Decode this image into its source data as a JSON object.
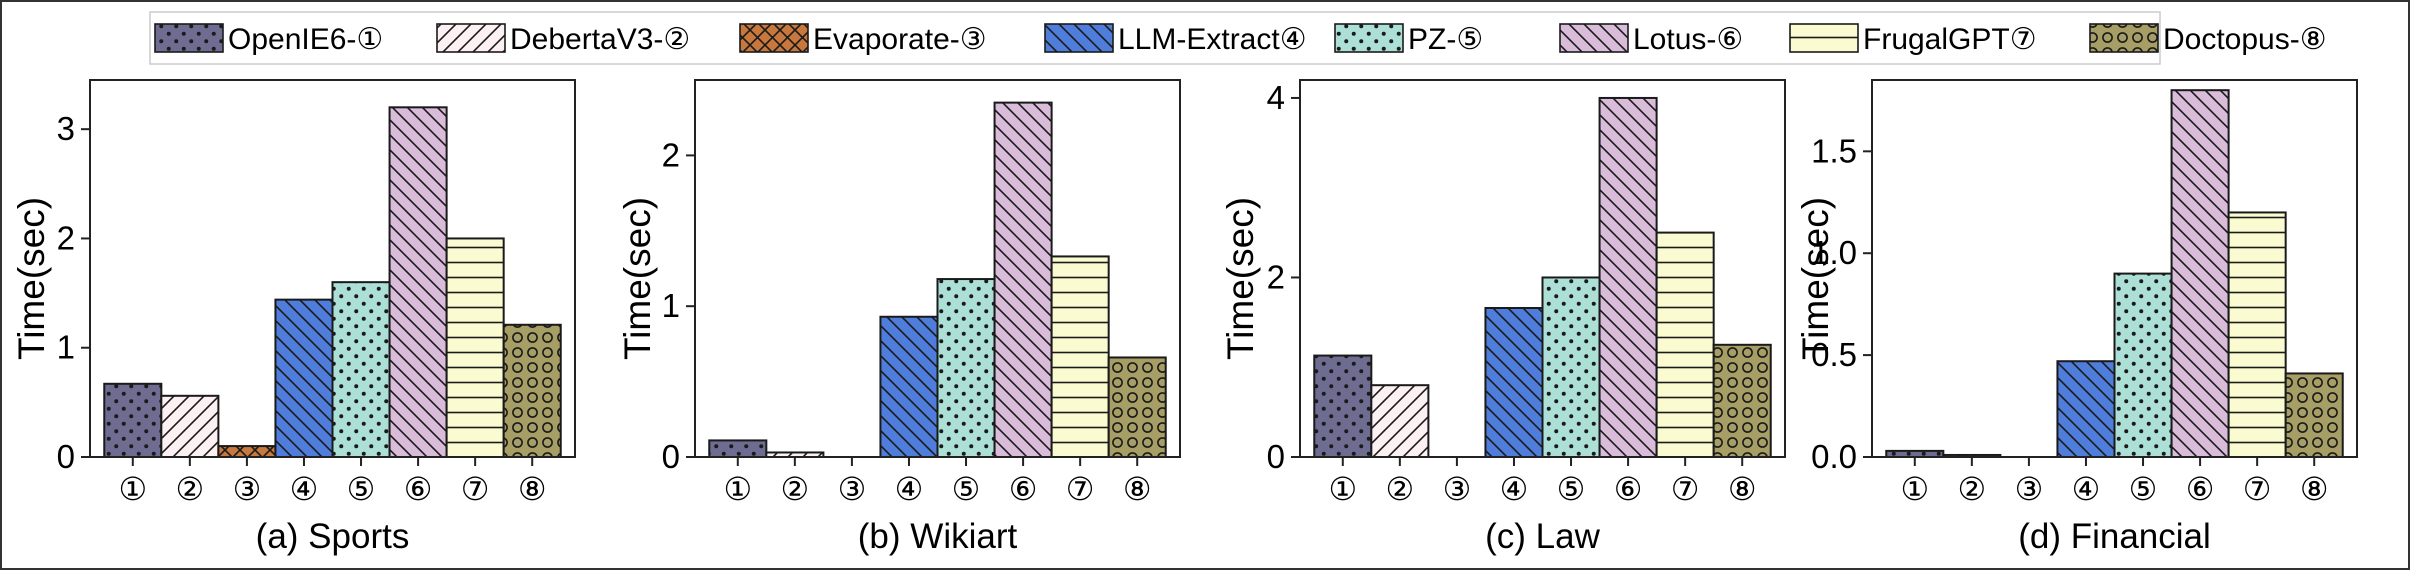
{
  "legend": {
    "placement": "top",
    "items": [
      {
        "label": "OpenIE6-①",
        "color": "#6e6d91",
        "pattern": "dots"
      },
      {
        "label": "DebertaV3-②",
        "color": "#fcf0f2",
        "pattern": "diag"
      },
      {
        "label": "Evaporate-③",
        "color": "#c8783c",
        "pattern": "cross"
      },
      {
        "label": "LLM-Extract④",
        "color": "#4f7ddb",
        "pattern": "back"
      },
      {
        "label": "PZ-⑤",
        "color": "#ace0d6",
        "pattern": "dots"
      },
      {
        "label": "Lotus-⑥",
        "color": "#d9bcd9",
        "pattern": "back"
      },
      {
        "label": "FrugalGPT⑦",
        "color": "#fafbd0",
        "pattern": "hline"
      },
      {
        "label": "Doctopus-⑧",
        "color": "#a69e64",
        "pattern": "circles"
      }
    ]
  },
  "chart_data": [
    {
      "type": "bar",
      "title": "(a) Sports",
      "ylabel": "Time(sec)",
      "categories": [
        "①",
        "②",
        "③",
        "④",
        "⑤",
        "⑥",
        "⑦",
        "⑧"
      ],
      "values": [
        0.67,
        0.56,
        0.1,
        1.44,
        1.6,
        3.2,
        2.0,
        1.21
      ],
      "ylim": [
        0,
        3.45
      ],
      "yticks": [
        0,
        1,
        2,
        3
      ],
      "ytick_labels": [
        "0",
        "1",
        "2",
        "3"
      ],
      "grid": false
    },
    {
      "type": "bar",
      "title": "(b) Wikiart",
      "ylabel": "Time(sec)",
      "categories": [
        "①",
        "②",
        "③",
        "④",
        "⑤",
        "⑥",
        "⑦",
        "⑧"
      ],
      "values": [
        0.11,
        0.03,
        0.0,
        0.93,
        1.18,
        2.35,
        1.33,
        0.66
      ],
      "ylim": [
        0,
        2.5
      ],
      "yticks": [
        0,
        1,
        2
      ],
      "ytick_labels": [
        "0",
        "1",
        "2"
      ],
      "grid": false
    },
    {
      "type": "bar",
      "title": "(c) Law",
      "ylabel": "Time(sec)",
      "categories": [
        "①",
        "②",
        "③",
        "④",
        "⑤",
        "⑥",
        "⑦",
        "⑧"
      ],
      "values": [
        1.13,
        0.8,
        0.0,
        1.66,
        2.0,
        4.0,
        2.5,
        1.25
      ],
      "ylim": [
        0,
        4.2
      ],
      "yticks": [
        0,
        2,
        4
      ],
      "ytick_labels": [
        "0",
        "2",
        "4"
      ],
      "grid": false
    },
    {
      "type": "bar",
      "title": "(d) Financial",
      "ylabel": "Time(sec)",
      "categories": [
        "①",
        "②",
        "③",
        "④",
        "⑤",
        "⑥",
        "⑦",
        "⑧"
      ],
      "values": [
        0.03,
        0.01,
        0.0,
        0.47,
        0.9,
        1.8,
        1.2,
        0.41
      ],
      "ylim": [
        0,
        1.85
      ],
      "yticks": [
        0,
        0.5,
        1.0,
        1.5
      ],
      "ytick_labels": [
        "0.0",
        "0.5",
        "1.0",
        "1.5"
      ],
      "grid": false
    }
  ]
}
